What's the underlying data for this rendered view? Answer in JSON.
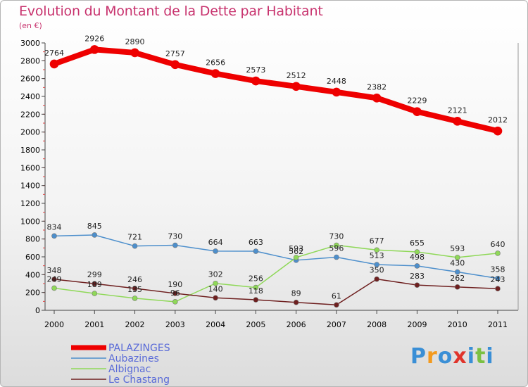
{
  "header": {
    "title": "Evolution du Montant de la Dette par Habitant",
    "unit": "(en €)"
  },
  "logo": {
    "text": "Proxiti",
    "colors": [
      "#3a8fd6",
      "#f39a1f",
      "#3a8fd6",
      "#e0342b",
      "#3a8fd6",
      "#7bc043",
      "#3a8fd6"
    ]
  },
  "chart_data": {
    "type": "line",
    "x": [
      "2000",
      "2001",
      "2002",
      "2003",
      "2004",
      "2005",
      "2006",
      "2007",
      "2008",
      "2009",
      "2010",
      "2011"
    ],
    "ylim": [
      0,
      3000
    ],
    "yticks": [
      0,
      200,
      400,
      600,
      800,
      1000,
      1200,
      1400,
      1600,
      1800,
      2000,
      2200,
      2400,
      2600,
      2800,
      3000
    ],
    "grid": false,
    "legend_position": "bottom-left",
    "series": [
      {
        "name": "PALAZINGES",
        "color": "#ee0000",
        "values": [
          2764,
          2926,
          2890,
          2757,
          2656,
          2573,
          2512,
          2448,
          2382,
          2229,
          2121,
          2012
        ]
      },
      {
        "name": "Aubazines",
        "color": "#4d8fcc",
        "values": [
          834,
          845,
          721,
          730,
          664,
          663,
          562,
          596,
          513,
          498,
          430,
          358
        ]
      },
      {
        "name": "Albignac",
        "color": "#8fd858",
        "values": [
          249,
          189,
          135,
          96,
          302,
          256,
          593,
          730,
          677,
          655,
          593,
          640
        ]
      },
      {
        "name": "Le Chastang",
        "color": "#6e1f1f",
        "values": [
          348,
          299,
          246,
          190,
          140,
          118,
          89,
          61,
          350,
          283,
          262,
          243
        ]
      }
    ]
  }
}
